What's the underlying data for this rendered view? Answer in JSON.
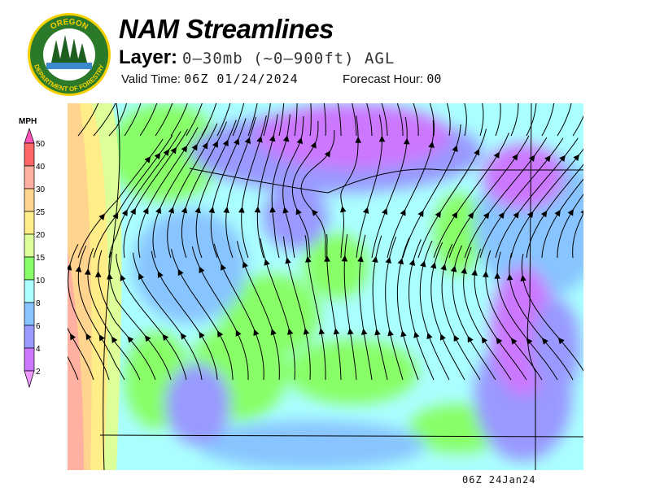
{
  "header": {
    "title": "NAM Streamlines",
    "layer_label": "Layer:",
    "layer_value": "0–30mb (~0–900ft) AGL",
    "valid_label": "Valid Time:",
    "valid_value": "06Z 01/24/2024",
    "forecast_label": "Forecast Hour:",
    "forecast_value": "00"
  },
  "logo": {
    "text_top": "OREGON",
    "text_ring": "DEPARTMENT OF FORESTRY",
    "ring_color": "#2a7a2a",
    "text_color": "#f5d000"
  },
  "legend": {
    "unit": "MPH",
    "bins": [
      {
        "label": "50",
        "color": "#ff6666"
      },
      {
        "label": "40",
        "color": "#ffb0a0"
      },
      {
        "label": "30",
        "color": "#ffd48f"
      },
      {
        "label": "25",
        "color": "#ffee88"
      },
      {
        "label": "20",
        "color": "#ddff99"
      },
      {
        "label": "15",
        "color": "#88ff66"
      },
      {
        "label": "10",
        "color": "#aaffff"
      },
      {
        "label": "8",
        "color": "#88c4ff"
      },
      {
        "label": "6",
        "color": "#9999ff"
      },
      {
        "label": "4",
        "color": "#cc77ff"
      },
      {
        "label": "2",
        "color": ""
      }
    ],
    "top_arrow_color": "#ff55bb",
    "bottom_arrow_color": "#ee99ff"
  },
  "footer": {
    "timestamp": "06Z 24Jan24"
  }
}
